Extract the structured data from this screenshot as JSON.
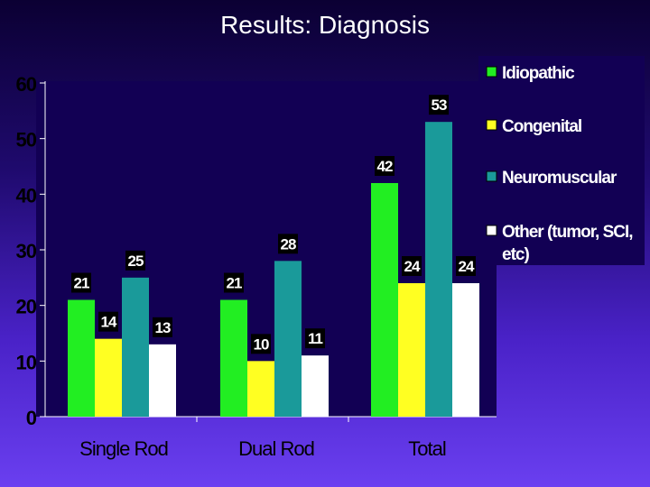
{
  "title": "Results: Diagnosis",
  "chart_data": {
    "type": "bar",
    "categories": [
      "Single Rod",
      "Dual Rod",
      "Total"
    ],
    "series": [
      {
        "name": "Idiopathic",
        "values": [
          21,
          21,
          42
        ],
        "color": "#22ee22"
      },
      {
        "name": "Congenital",
        "values": [
          14,
          10,
          24
        ],
        "color": "#ffff22"
      },
      {
        "name": "Neuromuscular",
        "values": [
          25,
          28,
          53
        ],
        "color": "#1a9a9a"
      },
      {
        "name": "Other (tumor, SCI, etc)",
        "values": [
          13,
          11,
          24
        ],
        "color": "#ffffff"
      }
    ],
    "ylim": [
      0,
      60
    ],
    "yticks": [
      0,
      10,
      20,
      30,
      40,
      50,
      60
    ],
    "grid": false,
    "legend": "top-right",
    "data_labels": true
  },
  "legend_lines": [
    [
      "Idiopathic"
    ],
    [
      "Congenital"
    ],
    [
      "Neuromuscular"
    ],
    [
      "Other (tumor, SCI,",
      "etc)"
    ]
  ]
}
